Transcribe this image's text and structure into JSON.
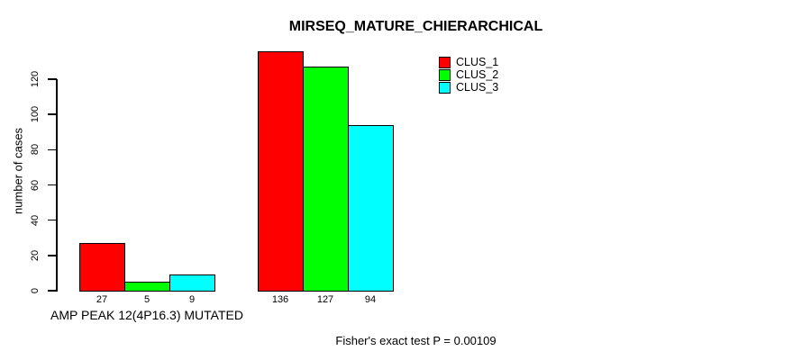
{
  "chart_data": {
    "type": "bar",
    "title": "MIRSEQ_MATURE_CHIERARCHICAL",
    "ylabel": "number of cases",
    "xlabel": "",
    "categories": [
      "AMP PEAK 12(4P16.3) MUTATED",
      ""
    ],
    "series": [
      {
        "name": "CLUS_1",
        "color": "#FF0000",
        "values": [
          27,
          136
        ]
      },
      {
        "name": "CLUS_2",
        "color": "#00FF00",
        "values": [
          5,
          127
        ]
      },
      {
        "name": "CLUS_3",
        "color": "#00FFFF",
        "values": [
          9,
          94
        ]
      }
    ],
    "yticks": [
      0,
      20,
      40,
      60,
      80,
      100,
      120
    ],
    "ylim": [
      0,
      140
    ],
    "grid": false,
    "bar_value_labels_shown": true,
    "legend_position": "top-right",
    "annotation": "Fisher's exact test P = 0.00109",
    "axis_color": "#000000",
    "text_color": "#000000",
    "background": "#FFFFFF"
  }
}
